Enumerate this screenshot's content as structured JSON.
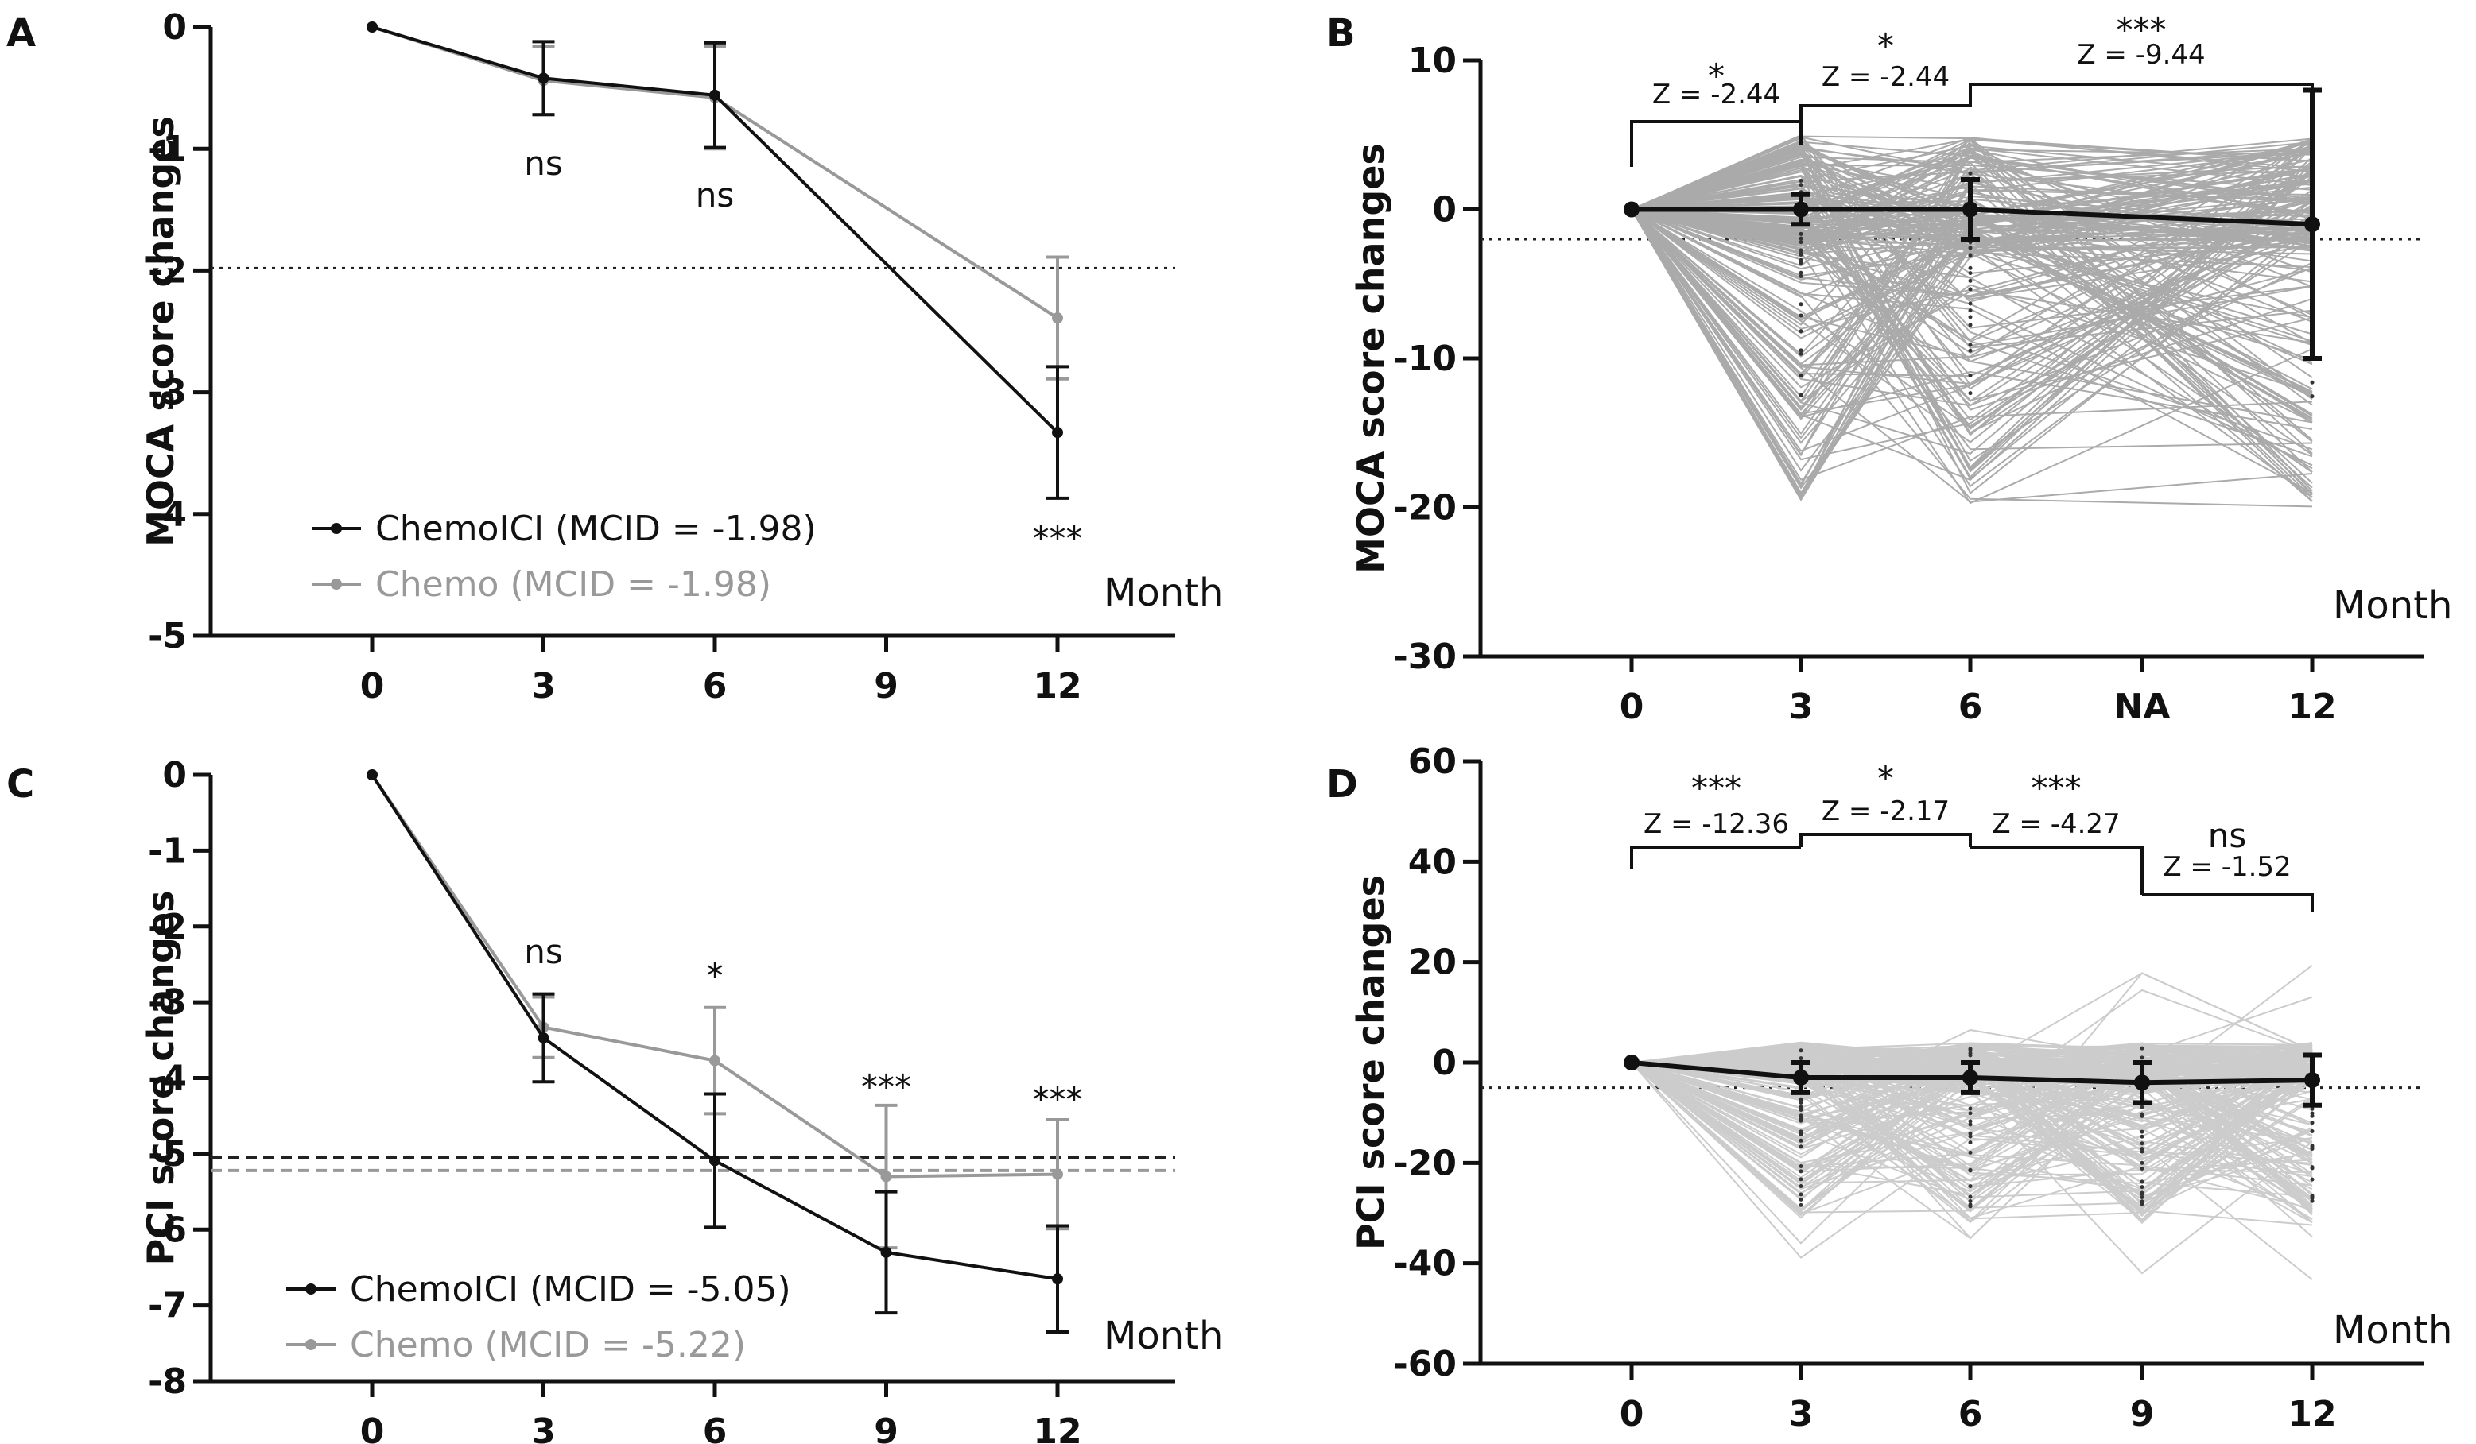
{
  "chart_data": [
    {
      "panel": "A",
      "type": "line",
      "ylabel": "MOCA score changes",
      "xlabel": "Month",
      "ylim": [
        -5,
        0
      ],
      "yticks": [
        "0",
        "-1",
        "-2",
        "-3",
        "-4",
        "-5"
      ],
      "xticks": [
        "0",
        "3",
        "6",
        "9",
        "12"
      ],
      "mcid_line": -1.98,
      "series": [
        {
          "name": "ChemoICI (MCID = -1.98)",
          "color": "#111111",
          "x": [
            0,
            3,
            6,
            12
          ],
          "values": [
            0,
            -0.42,
            -0.56,
            -3.33
          ],
          "err": [
            0,
            0.3,
            0.43,
            0.54
          ]
        },
        {
          "name": "Chemo (MCID = -1.98)",
          "color": "#999999",
          "x": [
            0,
            3,
            6,
            12
          ],
          "values": [
            0,
            -0.44,
            -0.58,
            -2.39
          ],
          "err": [
            0,
            0.28,
            0.42,
            0.5
          ]
        }
      ],
      "annotations": [
        {
          "x": 3,
          "label": "ns"
        },
        {
          "x": 6,
          "label": "ns"
        },
        {
          "x": 12,
          "label": "***"
        }
      ]
    },
    {
      "panel": "B",
      "type": "line",
      "ylabel": "MOCA score changes",
      "xlabel": "Month",
      "ylim": [
        -30,
        10
      ],
      "yticks": [
        "10",
        "0",
        "-10",
        "-20",
        "-30"
      ],
      "xticks": [
        "0",
        "3",
        "6",
        "NA",
        "12"
      ],
      "mcid_line": -2,
      "median_line": {
        "x": [
          "0",
          "3",
          "6",
          "12"
        ],
        "values": [
          0,
          0,
          0,
          -1
        ],
        "err": [
          0,
          1,
          2,
          9
        ]
      },
      "comparisons": [
        {
          "from": "0",
          "to": "3",
          "stars": "*",
          "z": "Z = -2.44"
        },
        {
          "from": "3",
          "to": "6",
          "stars": "*",
          "z": "Z = -2.44"
        },
        {
          "from": "6",
          "to": "12",
          "stars": "***",
          "z": "Z = -9.44"
        }
      ]
    },
    {
      "panel": "C",
      "type": "line",
      "ylabel": "PCI score changes",
      "xlabel": "Month",
      "ylim": [
        -8,
        0
      ],
      "yticks": [
        "0",
        "-1",
        "-2",
        "-3",
        "-4",
        "-5",
        "-6",
        "-7",
        "-8"
      ],
      "xticks": [
        "0",
        "3",
        "6",
        "9",
        "12"
      ],
      "mcid_lines": [
        -5.05,
        -5.22
      ],
      "series": [
        {
          "name": "ChemoICI (MCID = -5.05)",
          "color": "#111111",
          "x": [
            0,
            3,
            6,
            9,
            12
          ],
          "values": [
            0,
            -3.47,
            -5.09,
            -6.3,
            -6.65
          ],
          "err": [
            0,
            0.58,
            0.88,
            0.8,
            0.7
          ]
        },
        {
          "name": "Chemo (MCID = -5.22)",
          "color": "#999999",
          "x": [
            0,
            3,
            6,
            9,
            12
          ],
          "values": [
            0,
            -3.33,
            -3.77,
            -5.3,
            -5.27
          ],
          "err": [
            0,
            0.4,
            0.7,
            0.94,
            0.72
          ]
        }
      ],
      "annotations": [
        {
          "x": 3,
          "label": "ns"
        },
        {
          "x": 6,
          "label": "*"
        },
        {
          "x": 9,
          "label": "***"
        },
        {
          "x": 12,
          "label": "***"
        }
      ]
    },
    {
      "panel": "D",
      "type": "line",
      "ylabel": "PCI score changes",
      "xlabel": "Month",
      "ylim": [
        -60,
        60
      ],
      "yticks": [
        "60",
        "40",
        "20",
        "0",
        "-20",
        "-40",
        "-60"
      ],
      "xticks": [
        "0",
        "3",
        "6",
        "9",
        "12"
      ],
      "mcid_line": -5,
      "median_line": {
        "x": [
          "0",
          "3",
          "6",
          "9",
          "12"
        ],
        "values": [
          0,
          -3,
          -3,
          -4,
          -3.5
        ],
        "err": [
          0,
          3,
          3,
          4,
          5
        ]
      },
      "comparisons": [
        {
          "from": "0",
          "to": "3",
          "stars": "***",
          "z": "Z = -12.36"
        },
        {
          "from": "3",
          "to": "6",
          "stars": "*",
          "z": "Z = -2.17"
        },
        {
          "from": "6",
          "to": "9",
          "stars": "***",
          "z": "Z = -4.27"
        },
        {
          "from": "9",
          "to": "12",
          "stars": "ns",
          "z": "Z = -1.52"
        }
      ]
    }
  ]
}
